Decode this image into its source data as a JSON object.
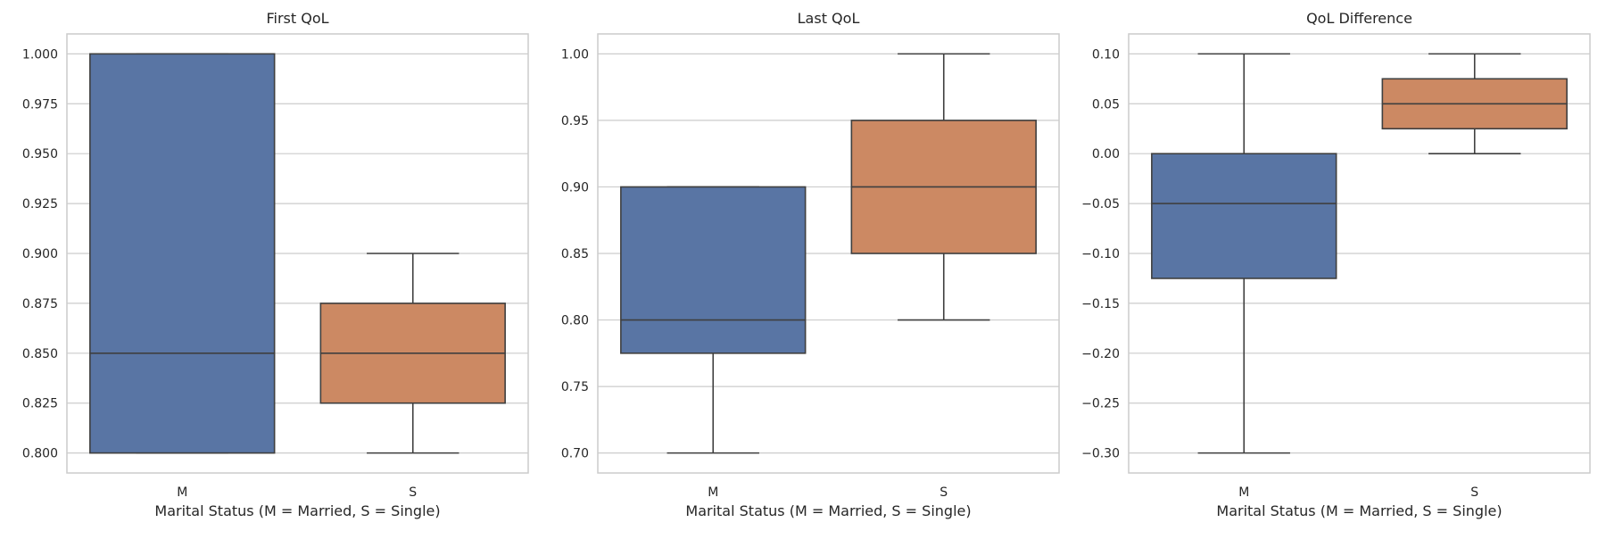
{
  "chart_data": [
    {
      "type": "box",
      "title": "First QoL",
      "xlabel": "Marital Status (M = Married, S = Single)",
      "ylabel": "",
      "categories": [
        "M",
        "S"
      ],
      "ylim": [
        0.79,
        1.01
      ],
      "yticks": [
        0.8,
        0.825,
        0.85,
        0.875,
        0.9,
        0.925,
        0.95,
        0.975,
        1.0
      ],
      "ytick_labels": [
        "0.800",
        "0.825",
        "0.850",
        "0.875",
        "0.900",
        "0.925",
        "0.950",
        "0.975",
        "1.000"
      ],
      "boxes": [
        {
          "category": "M",
          "whislo": 0.8,
          "q1": 0.8,
          "med": 0.85,
          "q3": 1.0,
          "whishi": 1.0,
          "color": "#5975a4"
        },
        {
          "category": "S",
          "whislo": 0.8,
          "q1": 0.825,
          "med": 0.85,
          "q3": 0.875,
          "whishi": 0.9,
          "color": "#cc8963"
        }
      ],
      "grid": "y"
    },
    {
      "type": "box",
      "title": "Last QoL",
      "xlabel": "Marital Status (M = Married, S = Single)",
      "ylabel": "",
      "categories": [
        "M",
        "S"
      ],
      "ylim": [
        0.685,
        1.015
      ],
      "yticks": [
        0.7,
        0.75,
        0.8,
        0.85,
        0.9,
        0.95,
        1.0
      ],
      "ytick_labels": [
        "0.70",
        "0.75",
        "0.80",
        "0.85",
        "0.90",
        "0.95",
        "1.00"
      ],
      "boxes": [
        {
          "category": "M",
          "whislo": 0.7,
          "q1": 0.775,
          "med": 0.8,
          "q3": 0.9,
          "whishi": 0.9,
          "color": "#5975a4"
        },
        {
          "category": "S",
          "whislo": 0.8,
          "q1": 0.85,
          "med": 0.9,
          "q3": 0.95,
          "whishi": 1.0,
          "color": "#cc8963"
        }
      ],
      "grid": "y"
    },
    {
      "type": "box",
      "title": "QoL Difference",
      "xlabel": "Marital Status (M = Married, S = Single)",
      "ylabel": "",
      "categories": [
        "M",
        "S"
      ],
      "ylim": [
        -0.32,
        0.12
      ],
      "yticks": [
        -0.3,
        -0.25,
        -0.2,
        -0.15,
        -0.1,
        -0.05,
        0.0,
        0.05,
        0.1
      ],
      "ytick_labels": [
        "−0.30",
        "−0.25",
        "−0.20",
        "−0.15",
        "−0.10",
        "−0.05",
        "0.00",
        "0.05",
        "0.10"
      ],
      "boxes": [
        {
          "category": "M",
          "whislo": -0.3,
          "q1": -0.125,
          "med": -0.05,
          "q3": 0.0,
          "whishi": 0.1,
          "color": "#5975a4"
        },
        {
          "category": "S",
          "whislo": 0.0,
          "q1": 0.025,
          "med": 0.05,
          "q3": 0.075,
          "whishi": 0.1,
          "color": "#cc8963"
        }
      ],
      "grid": "y"
    }
  ]
}
